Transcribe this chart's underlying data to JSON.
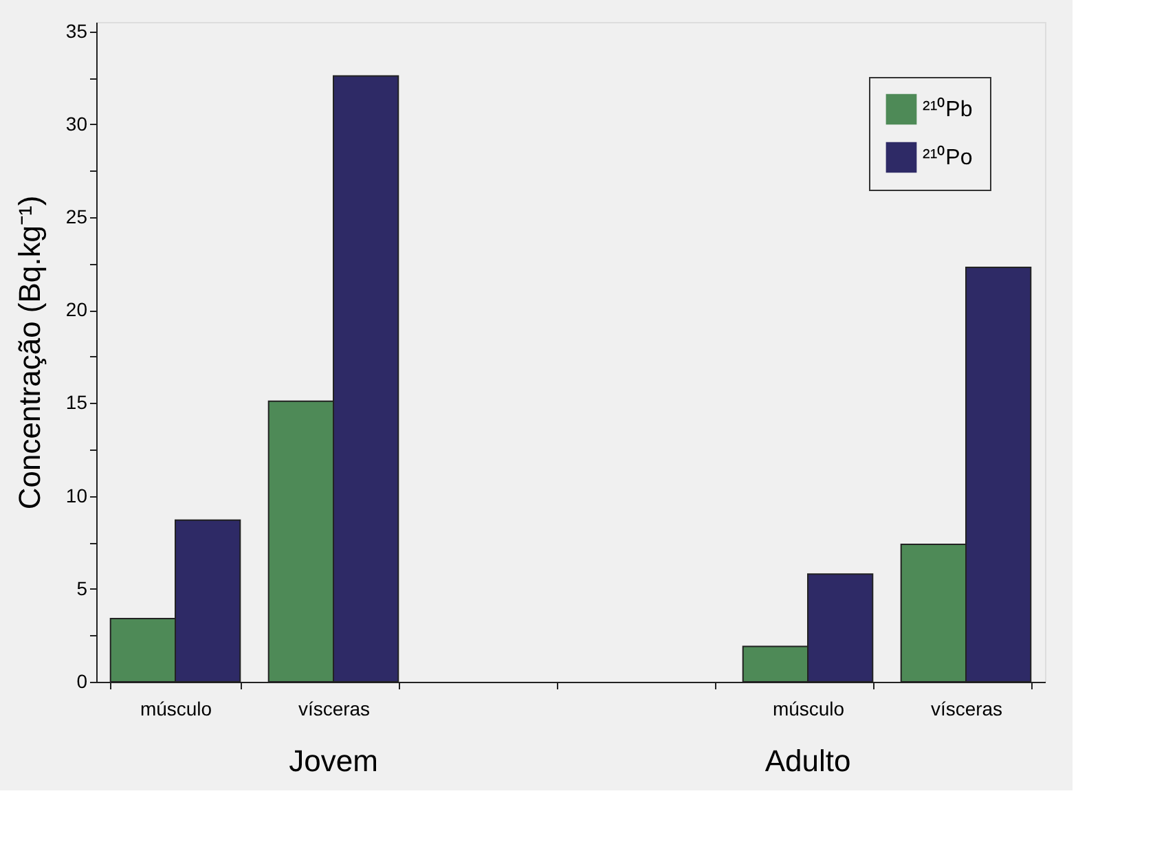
{
  "chart_data": {
    "type": "bar",
    "categories": [
      "músculo",
      "vísceras",
      null,
      null,
      "músculo",
      "vísceras"
    ],
    "series": [
      {
        "name": "²¹⁰Pb",
        "color": "#4e8a57",
        "values": [
          3.4,
          15.1,
          null,
          null,
          1.9,
          7.4
        ]
      },
      {
        "name": "²¹⁰Po",
        "color": "#2e2a66",
        "values": [
          8.7,
          32.6,
          null,
          null,
          5.8,
          22.3
        ]
      }
    ],
    "ylabel": "Concentração (Bq.kg⁻¹)",
    "ylim": [
      0,
      35.5
    ],
    "yticks": [
      0,
      {
        "value": 2.5,
        "label": null
      },
      5,
      {
        "value": 7.5,
        "label": null
      },
      10,
      {
        "value": 12.5,
        "label": null
      },
      15,
      {
        "value": 17.5,
        "label": null
      },
      20,
      {
        "value": 22.5,
        "label": null
      },
      25,
      {
        "value": 27.5,
        "label": null
      },
      30,
      {
        "value": 32.5,
        "label": null
      },
      35
    ],
    "annotations": [
      "Jovem",
      "Adulto"
    ],
    "legend": "top right",
    "grid": false
  }
}
